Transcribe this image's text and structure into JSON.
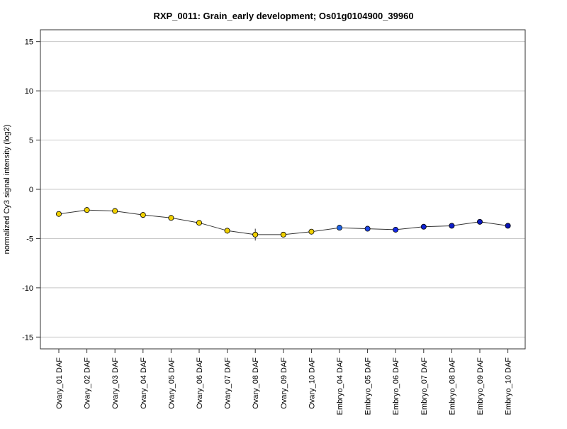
{
  "chart_data": {
    "type": "line",
    "title": "RXP_0011: Grain_early development; Os01g0104900_39960",
    "xlabel": "",
    "ylabel": "normalized Cy3 signal intensity (log2)",
    "ylim": [
      -16.2,
      16.2
    ],
    "yticks": [
      15,
      10,
      5,
      0,
      -5,
      -10,
      -15
    ],
    "grid": true,
    "categories": [
      "Ovary_01 DAF",
      "Ovary_02 DAF",
      "Ovary_03 DAF",
      "Ovary_04 DAF",
      "Ovary_05 DAF",
      "Ovary_06 DAF",
      "Ovary_07 DAF",
      "Ovary_08 DAF",
      "Ovary_09 DAF",
      "Ovary_10 DAF",
      "Embryo_04 DAF",
      "Embryo_05 DAF",
      "Embryo_06 DAF",
      "Embryo_07 DAF",
      "Embryo_08 DAF",
      "Embryo_09 DAF",
      "Embryo_10 DAF"
    ],
    "series": [
      {
        "values": [
          -2.5,
          -2.1,
          -2.2,
          -2.6,
          -2.9,
          -3.4,
          -4.2,
          -4.6,
          -4.6,
          -4.3,
          -3.9,
          -4.0,
          -4.1,
          -3.8,
          -3.7,
          -3.3,
          -3.7
        ],
        "errors": [
          0.15,
          0.15,
          0.15,
          0.3,
          0.2,
          0.15,
          0.3,
          0.6,
          0.15,
          0.15,
          0.1,
          0.1,
          0.1,
          0.1,
          0.1,
          0.1,
          0.1
        ],
        "point_colors": [
          "#f0d000",
          "#f0d000",
          "#f0d000",
          "#f0d000",
          "#f0d000",
          "#f0d000",
          "#f0d000",
          "#f0d000",
          "#f0d000",
          "#f0d000",
          "#1e64e6",
          "#1e46e6",
          "#1428e6",
          "#0f23d2",
          "#0f1ec8",
          "#0a19be",
          "#0a14b4"
        ]
      }
    ],
    "colors": {
      "ovary": "#f0d000",
      "embryo": "#1e46e6",
      "line": "#333333",
      "grid": "#c8c8c8"
    }
  }
}
